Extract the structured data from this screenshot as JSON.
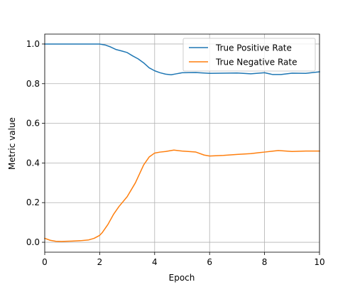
{
  "chart_data": {
    "type": "line",
    "title": "",
    "xlabel": "Epoch",
    "ylabel": "Metric value",
    "xlim": [
      0,
      10
    ],
    "ylim": [
      -0.05,
      1.05
    ],
    "xticks": [
      0,
      2,
      4,
      6,
      8,
      10
    ],
    "yticks": [
      0.0,
      0.2,
      0.4,
      0.6,
      0.8,
      1.0
    ],
    "xtick_labels": [
      "0",
      "2",
      "4",
      "6",
      "8",
      "10"
    ],
    "ytick_labels": [
      "0.0",
      "0.2",
      "0.4",
      "0.6",
      "0.8",
      "1.0"
    ],
    "grid": true,
    "legend_position": "top-right",
    "series": [
      {
        "name": "True Positive Rate",
        "color": "#1f77b4",
        "x": [
          0,
          0.5,
          1.0,
          1.5,
          1.8,
          2.0,
          2.2,
          2.4,
          2.6,
          2.8,
          3.0,
          3.2,
          3.4,
          3.6,
          3.8,
          4.0,
          4.2,
          4.4,
          4.6,
          4.8,
          5.0,
          5.5,
          6.0,
          6.5,
          7.0,
          7.5,
          8.0,
          8.3,
          8.6,
          9.0,
          9.5,
          10.0
        ],
        "y": [
          1.0,
          1.0,
          1.0,
          1.0,
          1.0,
          1.0,
          0.995,
          0.985,
          0.972,
          0.965,
          0.957,
          0.94,
          0.925,
          0.905,
          0.88,
          0.865,
          0.855,
          0.848,
          0.845,
          0.85,
          0.855,
          0.856,
          0.852,
          0.853,
          0.854,
          0.85,
          0.855,
          0.846,
          0.846,
          0.853,
          0.852,
          0.86
        ]
      },
      {
        "name": "True Negative Rate",
        "color": "#ff7f0e",
        "x": [
          0,
          0.2,
          0.4,
          0.6,
          0.8,
          1.0,
          1.3,
          1.6,
          1.8,
          2.0,
          2.1,
          2.3,
          2.5,
          2.7,
          3.0,
          3.3,
          3.6,
          3.8,
          4.0,
          4.2,
          4.4,
          4.7,
          5.0,
          5.5,
          5.8,
          6.0,
          6.5,
          7.0,
          7.5,
          7.8,
          8.0,
          8.5,
          9.0,
          9.5,
          10.0
        ],
        "y": [
          0.02,
          0.01,
          0.005,
          0.004,
          0.005,
          0.006,
          0.008,
          0.012,
          0.02,
          0.035,
          0.05,
          0.09,
          0.14,
          0.18,
          0.23,
          0.3,
          0.39,
          0.43,
          0.45,
          0.455,
          0.458,
          0.465,
          0.46,
          0.455,
          0.44,
          0.435,
          0.438,
          0.443,
          0.447,
          0.452,
          0.455,
          0.463,
          0.458,
          0.46,
          0.46
        ]
      }
    ]
  }
}
